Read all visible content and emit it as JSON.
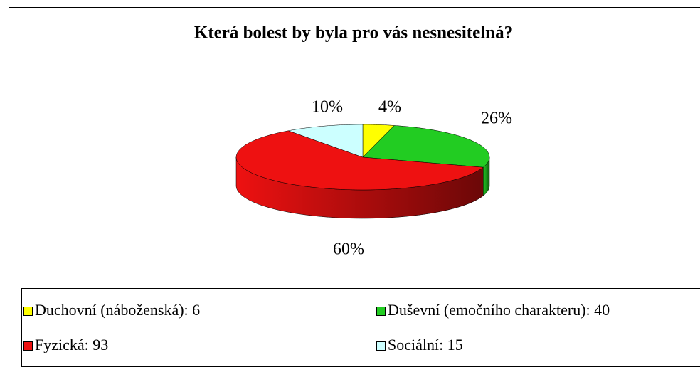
{
  "chart_data": {
    "type": "pie3d",
    "title": "Která bolest by byla pro vás nesnesitelná?",
    "categories": [
      "Duchovní (náboženská): 6",
      "Duševní (emočního charakteru): 40",
      "Fyzická: 93",
      "Sociální: 15"
    ],
    "values": [
      4,
      26,
      60,
      10
    ],
    "value_labels": [
      "4%",
      "26%",
      "60%",
      "10%"
    ],
    "colors": [
      "#ffff00",
      "#22cc22",
      "#ee1111",
      "#ccffff"
    ],
    "legend": "bottom"
  }
}
